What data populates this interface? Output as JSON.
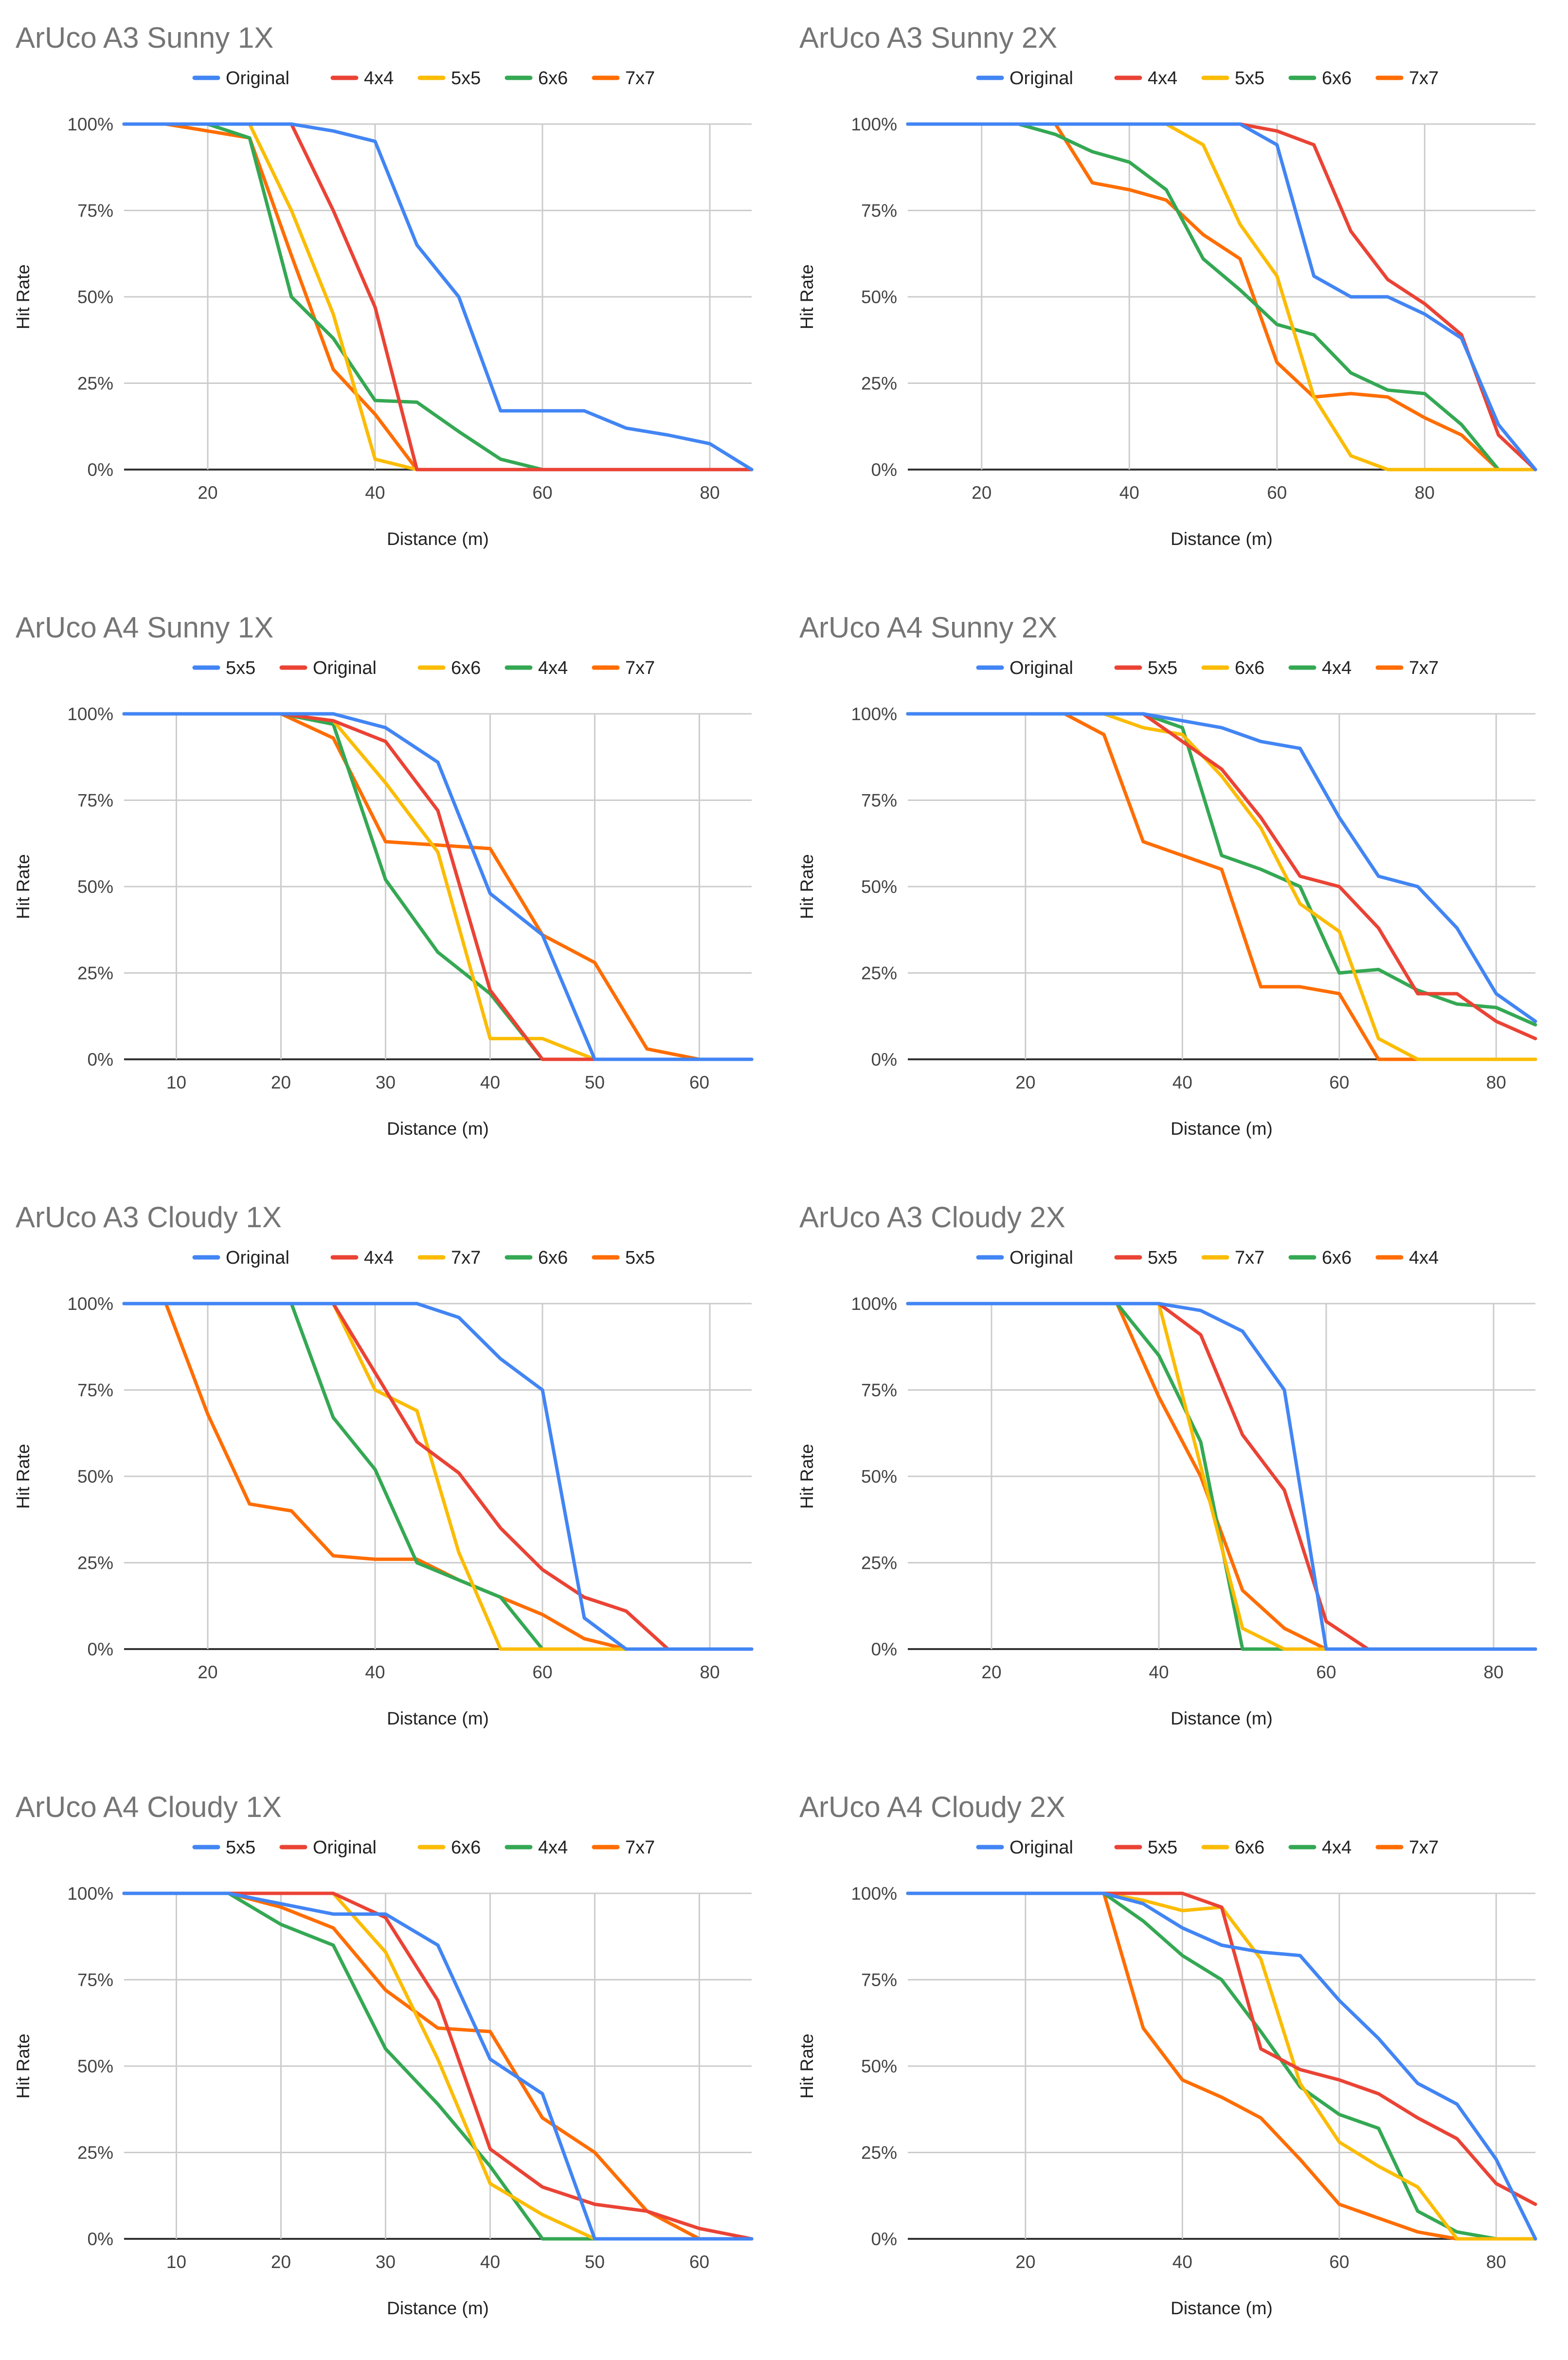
{
  "colors": {
    "blue": "#4285F4",
    "red": "#EA4335",
    "yellow": "#FBBC04",
    "green": "#34A853",
    "orange": "#FF6D01"
  },
  "chart_data": [
    {
      "type": "line",
      "title": "ArUco A3  Sunny 1X",
      "xlabel": "Distance (m)",
      "ylabel": "Hit Rate",
      "xlim": [
        10,
        85
      ],
      "xticks": [
        20,
        40,
        60,
        80
      ],
      "ylim": [
        0,
        100
      ],
      "yticks": [
        "0%",
        "25%",
        "50%",
        "75%",
        "100%"
      ],
      "x": [
        10,
        15,
        20,
        25,
        30,
        35,
        40,
        45,
        50,
        55,
        60,
        65,
        70,
        75,
        80,
        85
      ],
      "series": [
        {
          "name": "Original",
          "color": "#4285F4",
          "values": [
            100,
            100,
            100,
            100,
            100,
            98,
            95,
            65,
            50,
            17,
            17,
            17,
            12,
            10,
            7.5,
            0
          ]
        },
        {
          "name": "4x4",
          "color": "#EA4335",
          "values": [
            100,
            100,
            100,
            100,
            100,
            75,
            47,
            0,
            0,
            0,
            0,
            0,
            0,
            0,
            0,
            0
          ]
        },
        {
          "name": "5x5",
          "color": "#FBBC04",
          "values": [
            100,
            100,
            100,
            100,
            75,
            45,
            3,
            0,
            0,
            0,
            0,
            0,
            0,
            0,
            0,
            0
          ]
        },
        {
          "name": "6x6",
          "color": "#34A853",
          "values": [
            100,
            100,
            100,
            96,
            50,
            38,
            20,
            19.5,
            11,
            3,
            0,
            0,
            0,
            0,
            0,
            0
          ]
        },
        {
          "name": "7x7",
          "color": "#FF6D01",
          "values": [
            100,
            100,
            98,
            96,
            62,
            29,
            16,
            0,
            0,
            0,
            0,
            0,
            0,
            0,
            0,
            0
          ]
        }
      ]
    },
    {
      "type": "line",
      "title": "ArUco A3  Sunny 2X",
      "xlabel": "Distance (m)",
      "ylabel": "Hit Rate",
      "xlim": [
        10,
        95
      ],
      "xticks": [
        20,
        40,
        60,
        80
      ],
      "ylim": [
        0,
        100
      ],
      "yticks": [
        "0%",
        "25%",
        "50%",
        "75%",
        "100%"
      ],
      "x": [
        10,
        15,
        20,
        25,
        30,
        35,
        40,
        45,
        50,
        55,
        60,
        65,
        70,
        75,
        80,
        85,
        90,
        95
      ],
      "series": [
        {
          "name": "Original",
          "color": "#4285F4",
          "values": [
            100,
            100,
            100,
            100,
            100,
            100,
            100,
            100,
            100,
            100,
            94,
            56,
            50,
            50,
            45,
            38,
            13,
            0
          ]
        },
        {
          "name": "4x4",
          "color": "#EA4335",
          "values": [
            100,
            100,
            100,
            100,
            100,
            100,
            100,
            100,
            100,
            100,
            98,
            94,
            69,
            55,
            48,
            39,
            10,
            0
          ]
        },
        {
          "name": "5x5",
          "color": "#FBBC04",
          "values": [
            100,
            100,
            100,
            100,
            100,
            100,
            100,
            100,
            94,
            71,
            56,
            21,
            4,
            0,
            0,
            0,
            0,
            0
          ]
        },
        {
          "name": "6x6",
          "color": "#34A853",
          "values": [
            100,
            100,
            100,
            100,
            97,
            92,
            89,
            81,
            61,
            52,
            42,
            39,
            28,
            23,
            22,
            13,
            0,
            0
          ]
        },
        {
          "name": "7x7",
          "color": "#FF6D01",
          "values": [
            100,
            100,
            100,
            100,
            100,
            83,
            81,
            78,
            68,
            61,
            31,
            21,
            22,
            21,
            15,
            10,
            0,
            0
          ]
        }
      ]
    },
    {
      "type": "line",
      "title": "ArUco A4  Sunny 1X",
      "xlabel": "Distance (m)",
      "ylabel": "Hit Rate",
      "xlim": [
        5,
        65
      ],
      "xticks": [
        10,
        20,
        30,
        40,
        50,
        60
      ],
      "ylim": [
        0,
        100
      ],
      "yticks": [
        "0%",
        "25%",
        "50%",
        "75%",
        "100%"
      ],
      "x": [
        5,
        10,
        15,
        20,
        25,
        30,
        35,
        40,
        45,
        50,
        55,
        60,
        65
      ],
      "series": [
        {
          "name": "5x5",
          "color": "#4285F4",
          "values": [
            100,
            100,
            100,
            100,
            100,
            96,
            86,
            48,
            36,
            0,
            0,
            0,
            0
          ]
        },
        {
          "name": "Original",
          "color": "#EA4335",
          "values": [
            100,
            100,
            100,
            100,
            98,
            92,
            72,
            20,
            0,
            0,
            0,
            0,
            0
          ]
        },
        {
          "name": "6x6",
          "color": "#FBBC04",
          "values": [
            100,
            100,
            100,
            100,
            98,
            80,
            60,
            6,
            6,
            0,
            0,
            0,
            0
          ]
        },
        {
          "name": "4x4",
          "color": "#34A853",
          "values": [
            100,
            100,
            100,
            100,
            97,
            52,
            31,
            19,
            0,
            0,
            0,
            0,
            0
          ]
        },
        {
          "name": "7x7",
          "color": "#FF6D01",
          "values": [
            100,
            100,
            100,
            100,
            93,
            63,
            62,
            61,
            36,
            28,
            3,
            0,
            0
          ]
        }
      ]
    },
    {
      "type": "line",
      "title": "ArUco A4  Sunny 2X",
      "xlabel": "Distance (m)",
      "ylabel": "Hit Rate",
      "xlim": [
        5,
        85
      ],
      "xticks": [
        20,
        40,
        60,
        80
      ],
      "ylim": [
        0,
        100
      ],
      "yticks": [
        "0%",
        "25%",
        "50%",
        "75%",
        "100%"
      ],
      "x": [
        5,
        10,
        15,
        20,
        25,
        30,
        35,
        40,
        45,
        50,
        55,
        60,
        65,
        70,
        75,
        80,
        85
      ],
      "series": [
        {
          "name": "Original",
          "color": "#4285F4",
          "values": [
            100,
            100,
            100,
            100,
            100,
            100,
            100,
            98,
            96,
            92,
            90,
            70,
            53,
            50,
            38,
            19,
            11
          ]
        },
        {
          "name": "5x5",
          "color": "#EA4335",
          "values": [
            100,
            100,
            100,
            100,
            100,
            100,
            100,
            92,
            84,
            70,
            53,
            50,
            38,
            19,
            19,
            11,
            6
          ]
        },
        {
          "name": "6x6",
          "color": "#FBBC04",
          "values": [
            100,
            100,
            100,
            100,
            100,
            100,
            96,
            94,
            82,
            67,
            45,
            37,
            6,
            0,
            0,
            0,
            0
          ]
        },
        {
          "name": "4x4",
          "color": "#34A853",
          "values": [
            100,
            100,
            100,
            100,
            100,
            100,
            100,
            96,
            59,
            55,
            50,
            25,
            26,
            20,
            16,
            15,
            10
          ]
        },
        {
          "name": "7x7",
          "color": "#FF6D01",
          "values": [
            100,
            100,
            100,
            100,
            100,
            94,
            63,
            59,
            55,
            21,
            21,
            19,
            0,
            0,
            0,
            0,
            0
          ]
        }
      ]
    },
    {
      "type": "line",
      "title": "ArUco A3  Cloudy 1X",
      "xlabel": "Distance (m)",
      "ylabel": "Hit Rate",
      "xlim": [
        10,
        85
      ],
      "xticks": [
        20,
        40,
        60,
        80
      ],
      "ylim": [
        0,
        100
      ],
      "yticks": [
        "0%",
        "25%",
        "50%",
        "75%",
        "100%"
      ],
      "x": [
        10,
        15,
        20,
        25,
        30,
        35,
        40,
        45,
        50,
        55,
        60,
        65,
        70,
        75,
        80,
        85
      ],
      "series": [
        {
          "name": "Original",
          "color": "#4285F4",
          "values": [
            100,
            100,
            100,
            100,
            100,
            100,
            100,
            100,
            96,
            84,
            75,
            9,
            0,
            0,
            0,
            0
          ]
        },
        {
          "name": "4x4",
          "color": "#EA4335",
          "values": [
            100,
            100,
            100,
            100,
            100,
            100,
            80,
            60,
            51,
            35,
            23,
            15,
            11,
            0,
            0,
            0
          ]
        },
        {
          "name": "7x7",
          "color": "#FBBC04",
          "values": [
            100,
            100,
            100,
            100,
            100,
            100,
            75,
            69,
            28,
            0,
            0,
            0,
            0,
            0,
            0,
            0
          ]
        },
        {
          "name": "6x6",
          "color": "#34A853",
          "values": [
            100,
            100,
            100,
            100,
            100,
            67,
            52,
            25,
            20,
            15,
            0,
            0,
            0,
            0,
            0,
            0
          ]
        },
        {
          "name": "5x5",
          "color": "#FF6D01",
          "values": [
            100,
            100,
            68,
            42,
            40,
            27,
            26,
            26,
            20,
            15,
            10,
            3,
            0,
            0,
            0,
            0
          ]
        }
      ]
    },
    {
      "type": "line",
      "title": "ArUco A3  Cloudy 2X",
      "xlabel": "Distance (m)",
      "ylabel": "Hit Rate",
      "xlim": [
        10,
        85
      ],
      "xticks": [
        20,
        40,
        60,
        80
      ],
      "ylim": [
        0,
        100
      ],
      "yticks": [
        "0%",
        "25%",
        "50%",
        "75%",
        "100%"
      ],
      "x": [
        10,
        15,
        20,
        25,
        30,
        35,
        40,
        45,
        50,
        55,
        60,
        65,
        70,
        75,
        80,
        85
      ],
      "series": [
        {
          "name": "Original",
          "color": "#4285F4",
          "values": [
            100,
            100,
            100,
            100,
            100,
            100,
            100,
            98,
            92,
            75,
            0,
            0,
            0,
            0,
            0,
            0
          ]
        },
        {
          "name": "5x5",
          "color": "#EA4335",
          "values": [
            100,
            100,
            100,
            100,
            100,
            100,
            100,
            91,
            62,
            46,
            8,
            0,
            0,
            0,
            0,
            0
          ]
        },
        {
          "name": "7x7",
          "color": "#FBBC04",
          "values": [
            100,
            100,
            100,
            100,
            100,
            100,
            100,
            53,
            6,
            0,
            0,
            0,
            0,
            0,
            0,
            0
          ]
        },
        {
          "name": "6x6",
          "color": "#34A853",
          "values": [
            100,
            100,
            100,
            100,
            100,
            100,
            85,
            60,
            0,
            0,
            0,
            0,
            0,
            0,
            0,
            0
          ]
        },
        {
          "name": "4x4",
          "color": "#FF6D01",
          "values": [
            100,
            100,
            100,
            100,
            100,
            100,
            73,
            50,
            17,
            6,
            0,
            0,
            0,
            0,
            0,
            0
          ]
        }
      ]
    },
    {
      "type": "line",
      "title": "ArUco A4  Cloudy 1X",
      "xlabel": "Distance (m)",
      "ylabel": "Hit Rate",
      "xlim": [
        5,
        65
      ],
      "xticks": [
        10,
        20,
        30,
        40,
        50,
        60
      ],
      "ylim": [
        0,
        100
      ],
      "yticks": [
        "0%",
        "25%",
        "50%",
        "75%",
        "100%"
      ],
      "x": [
        5,
        10,
        15,
        20,
        25,
        30,
        35,
        40,
        45,
        50,
        55,
        60,
        65
      ],
      "series": [
        {
          "name": "5x5",
          "color": "#4285F4",
          "values": [
            100,
            100,
            100,
            97,
            94,
            94,
            85,
            52,
            42,
            0,
            0,
            0,
            0
          ]
        },
        {
          "name": "Original",
          "color": "#EA4335",
          "values": [
            100,
            100,
            100,
            100,
            100,
            93,
            69,
            26,
            15,
            10,
            8,
            3,
            0
          ]
        },
        {
          "name": "6x6",
          "color": "#FBBC04",
          "values": [
            100,
            100,
            100,
            100,
            100,
            83,
            52,
            16,
            7,
            0,
            0,
            0,
            0
          ]
        },
        {
          "name": "4x4",
          "color": "#34A853",
          "values": [
            100,
            100,
            100,
            91,
            85,
            55,
            39,
            21,
            0,
            0,
            0,
            0,
            0
          ]
        },
        {
          "name": "7x7",
          "color": "#FF6D01",
          "values": [
            100,
            100,
            100,
            96,
            90,
            72,
            61,
            60,
            35,
            25,
            8,
            0,
            0
          ]
        }
      ]
    },
    {
      "type": "line",
      "title": "ArUco A4  Cloudy 2X",
      "xlabel": "Distance (m)",
      "ylabel": "Hit Rate",
      "xlim": [
        5,
        85
      ],
      "xticks": [
        20,
        40,
        60,
        80
      ],
      "ylim": [
        0,
        100
      ],
      "yticks": [
        "0%",
        "25%",
        "50%",
        "75%",
        "100%"
      ],
      "x": [
        5,
        10,
        15,
        20,
        25,
        30,
        35,
        40,
        45,
        50,
        55,
        60,
        65,
        70,
        75,
        80,
        85
      ],
      "series": [
        {
          "name": "Original",
          "color": "#4285F4",
          "values": [
            100,
            100,
            100,
            100,
            100,
            100,
            97,
            90,
            85,
            83,
            82,
            69,
            58,
            45,
            39,
            23,
            0
          ]
        },
        {
          "name": "5x5",
          "color": "#EA4335",
          "values": [
            100,
            100,
            100,
            100,
            100,
            100,
            100,
            100,
            96,
            55,
            49,
            46,
            42,
            35,
            29,
            16,
            10
          ]
        },
        {
          "name": "6x6",
          "color": "#FBBC04",
          "values": [
            100,
            100,
            100,
            100,
            100,
            100,
            98,
            95,
            96,
            81,
            45,
            28,
            21,
            15,
            0,
            0,
            0
          ]
        },
        {
          "name": "4x4",
          "color": "#34A853",
          "values": [
            100,
            100,
            100,
            100,
            100,
            100,
            92,
            82,
            75,
            60,
            44,
            36,
            32,
            8,
            2,
            0,
            0
          ]
        },
        {
          "name": "7x7",
          "color": "#FF6D01",
          "values": [
            100,
            100,
            100,
            100,
            100,
            100,
            61,
            46,
            41,
            35,
            23,
            10,
            6,
            2,
            0,
            0,
            0
          ]
        }
      ]
    }
  ]
}
